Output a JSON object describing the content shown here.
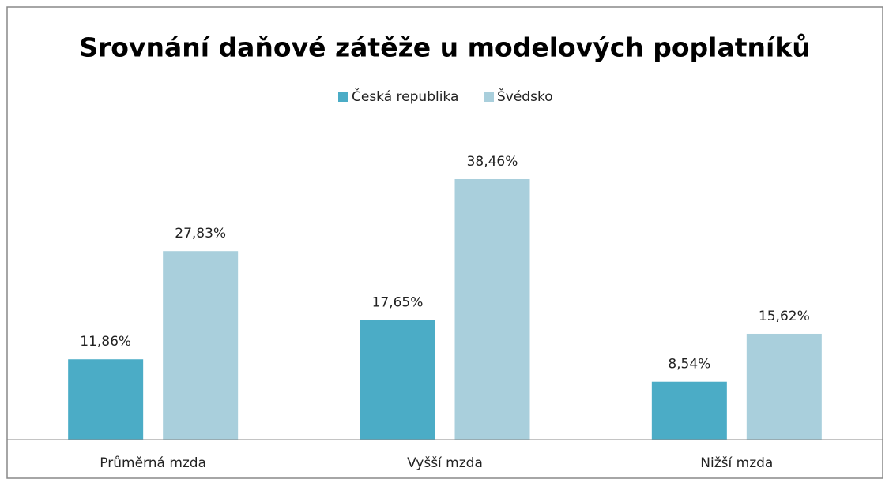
{
  "chart_data": {
    "type": "bar",
    "title": "Srovnání daňové zátěže u modelových poplatníků",
    "categories": [
      "Průměrná mzda",
      "Vyšší mzda",
      "Nižší mzda"
    ],
    "series": [
      {
        "name": "Česká republika",
        "color": "#4bacc6",
        "values": [
          11.86,
          17.65,
          8.54
        ],
        "value_labels": [
          "11,86%",
          "17,65%",
          "8,54%"
        ]
      },
      {
        "name": "Švédsko",
        "color": "#a9cfdc",
        "values": [
          27.83,
          38.46,
          15.62
        ],
        "value_labels": [
          "27,83%",
          "38,46%",
          "15,62%"
        ]
      }
    ],
    "legend": "top"
  }
}
